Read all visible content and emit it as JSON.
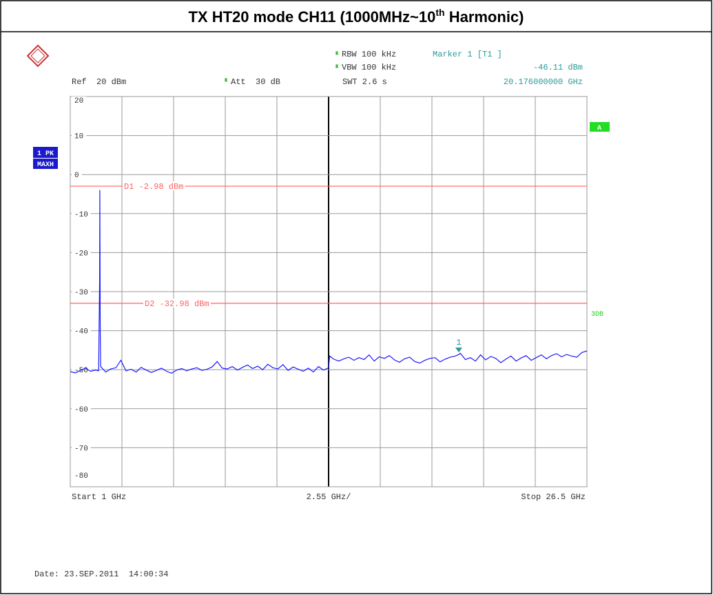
{
  "chart_data": {
    "type": "line",
    "title_parts": [
      "TX HT20 mode CH11 (1000MHz~10",
      "th",
      " Harmonic)"
    ],
    "settings": {
      "rbw": "RBW 100 kHz",
      "vbw": "VBW 100 kHz",
      "swt": "SWT 2.6 s",
      "ref": "Ref  20 dBm",
      "att": "Att  30 dB"
    },
    "trace_labels": [
      "1 PK",
      "MAXH"
    ],
    "right_labels": {
      "box": "A",
      "text": "3DB"
    },
    "x_labels": {
      "start": "Start 1 GHz",
      "span": "2.55 GHz/",
      "stop": "Stop 26.5 GHz"
    },
    "date": "Date: 23.SEP.2011  14:00:34",
    "marker": {
      "title": "Marker 1 [T1 ]",
      "label": "1",
      "x": 20.176,
      "y": -46.11,
      "value_label": "-46.11 dBm",
      "x_label": "20.176000000 GHz"
    },
    "display_lines": [
      {
        "label": "D1 -2.98 dBm",
        "value": -2.98
      },
      {
        "label": "D2 -32.98 dBm",
        "value": -32.98
      }
    ],
    "line_color": "#ff6060",
    "color": "#1a1aff",
    "grid": true,
    "xlim": [
      1,
      26.5
    ],
    "ylim": [
      -80,
      20
    ],
    "xticks": [
      1,
      3.55,
      6.1,
      8.65,
      11.2,
      13.75,
      16.3,
      18.85,
      21.4,
      23.95,
      26.5
    ],
    "yticks": [
      20,
      10,
      0,
      -10,
      -20,
      -30,
      -40,
      -50,
      -60,
      -70,
      -80
    ],
    "x": [
      1,
      1.25,
      1.5,
      1.75,
      2,
      2.25,
      2.4,
      2.45,
      2.46,
      2.48,
      2.5,
      2.75,
      3,
      3.25,
      3.5,
      3.75,
      4,
      4.25,
      4.5,
      4.75,
      5,
      5.25,
      5.5,
      5.75,
      6,
      6.25,
      6.5,
      6.75,
      7,
      7.25,
      7.5,
      7.75,
      8,
      8.25,
      8.5,
      8.75,
      9,
      9.25,
      9.5,
      9.75,
      10,
      10.25,
      10.5,
      10.75,
      11,
      11.25,
      11.5,
      11.75,
      12,
      12.25,
      12.5,
      12.75,
      13,
      13.25,
      13.5,
      13.75,
      13.8,
      14,
      14.25,
      14.5,
      14.75,
      15,
      15.25,
      15.5,
      15.75,
      16,
      16.25,
      16.5,
      16.75,
      17,
      17.25,
      17.5,
      17.75,
      18,
      18.25,
      18.5,
      18.75,
      19,
      19.25,
      19.5,
      19.75,
      20,
      20.176,
      20.25,
      20.5,
      20.75,
      21,
      21.25,
      21.5,
      21.75,
      22,
      22.25,
      22.5,
      22.75,
      23,
      23.25,
      23.5,
      23.75,
      24,
      24.25,
      24.5,
      24.75,
      25,
      25.25,
      25.5,
      25.75,
      26,
      26.25,
      26.5
    ],
    "values": [
      -50.5,
      -50.8,
      -50.2,
      -49.6,
      -50.4,
      -50.1,
      -50.3,
      -27,
      -4,
      -40,
      -49.2,
      -50.6,
      -49.8,
      -49.5,
      -47.6,
      -50.3,
      -49.9,
      -50.6,
      -49.4,
      -50.1,
      -50.7,
      -50.2,
      -49.6,
      -50.4,
      -50.9,
      -50.1,
      -49.7,
      -50.3,
      -49.8,
      -49.5,
      -50.2,
      -49.9,
      -49.3,
      -47.9,
      -49.6,
      -49.8,
      -49.2,
      -50.1,
      -49.4,
      -48.8,
      -49.7,
      -49.1,
      -50,
      -48.6,
      -49.5,
      -49.8,
      -48.7,
      -50.2,
      -49.3,
      -49.9,
      -50.4,
      -49.6,
      -50.6,
      -49.2,
      -50.1,
      -49.5,
      -46.5,
      -47.3,
      -47.8,
      -47.2,
      -46.8,
      -47.6,
      -46.9,
      -47.4,
      -46.2,
      -47.8,
      -46.7,
      -47.1,
      -46.4,
      -47.5,
      -48.1,
      -47.2,
      -46.8,
      -47.9,
      -48.3,
      -47.6,
      -47.1,
      -46.9,
      -48,
      -47.3,
      -46.8,
      -46.5,
      -46.11,
      -45.8,
      -47.4,
      -46.9,
      -47.8,
      -46.2,
      -47.5,
      -46.6,
      -47.1,
      -48.2,
      -47.3,
      -46.5,
      -47.8,
      -47,
      -46.4,
      -47.6,
      -46.9,
      -46.2,
      -47.2,
      -46.4,
      -45.9,
      -46.7,
      -46.1,
      -46.5,
      -46.8,
      -45.6,
      -45.2
    ]
  }
}
